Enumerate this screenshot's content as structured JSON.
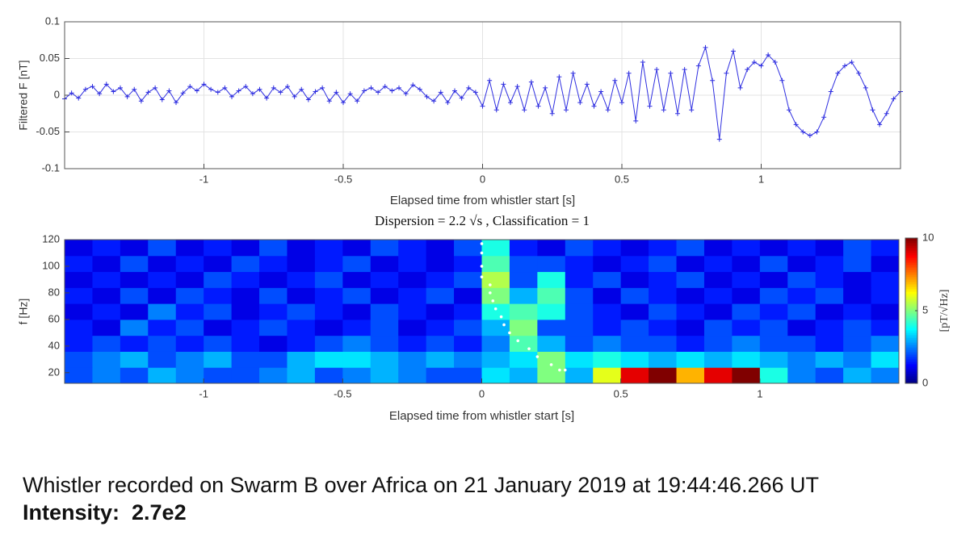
{
  "chart_data": [
    {
      "type": "line",
      "xlabel": "Elapsed time from whistler start  [s]",
      "ylabel": "Filtered F [nT]",
      "xlim": [
        -1.5,
        1.5
      ],
      "ylim": [
        -0.1,
        0.1
      ],
      "xticks": [
        -1,
        -0.5,
        0,
        0.5,
        1
      ],
      "yticks": [
        -0.1,
        -0.05,
        0,
        0.05,
        0.1
      ],
      "grid": true,
      "x": [
        -1.5,
        -1.475,
        -1.45,
        -1.425,
        -1.4,
        -1.375,
        -1.35,
        -1.325,
        -1.3,
        -1.275,
        -1.25,
        -1.225,
        -1.2,
        -1.175,
        -1.15,
        -1.125,
        -1.1,
        -1.075,
        -1.05,
        -1.025,
        -1,
        -0.975,
        -0.95,
        -0.925,
        -0.9,
        -0.875,
        -0.85,
        -0.825,
        -0.8,
        -0.775,
        -0.75,
        -0.725,
        -0.7,
        -0.675,
        -0.65,
        -0.625,
        -0.6,
        -0.575,
        -0.55,
        -0.525,
        -0.5,
        -0.475,
        -0.45,
        -0.425,
        -0.4,
        -0.375,
        -0.35,
        -0.325,
        -0.3,
        -0.275,
        -0.25,
        -0.225,
        -0.2,
        -0.175,
        -0.15,
        -0.125,
        -0.1,
        -0.075,
        -0.05,
        -0.025,
        0,
        0.025,
        0.05,
        0.075,
        0.1,
        0.125,
        0.15,
        0.175,
        0.2,
        0.225,
        0.25,
        0.275,
        0.3,
        0.325,
        0.35,
        0.375,
        0.4,
        0.425,
        0.45,
        0.475,
        0.5,
        0.525,
        0.55,
        0.575,
        0.6,
        0.625,
        0.65,
        0.675,
        0.7,
        0.725,
        0.75,
        0.775,
        0.8,
        0.825,
        0.85,
        0.875,
        0.9,
        0.925,
        0.95,
        0.975,
        1,
        1.025,
        1.05,
        1.075,
        1.1,
        1.125,
        1.15,
        1.175,
        1.2,
        1.225,
        1.25,
        1.275,
        1.3,
        1.325,
        1.35,
        1.375,
        1.4,
        1.425,
        1.45,
        1.475,
        1.5
      ],
      "series": [
        {
          "color": "#2e2ee0",
          "values": [
            -0.005,
            0.003,
            -0.004,
            0.008,
            0.012,
            0.002,
            0.015,
            0.005,
            0.01,
            -0.002,
            0.008,
            -0.008,
            0.004,
            0.01,
            -0.006,
            0.006,
            -0.01,
            0.003,
            0.012,
            0.006,
            0.015,
            0.008,
            0.004,
            0.01,
            -0.002,
            0.006,
            0.012,
            0.002,
            0.008,
            -0.004,
            0.01,
            0.004,
            0.012,
            -0.002,
            0.008,
            -0.006,
            0.005,
            0.01,
            -0.008,
            0.004,
            -0.01,
            0.002,
            -0.008,
            0.006,
            0.01,
            0.004,
            0.012,
            0.006,
            0.01,
            0.002,
            0.014,
            0.008,
            -0.002,
            -0.008,
            0.004,
            -0.01,
            0.006,
            -0.004,
            0.01,
            0.004,
            -0.015,
            0.02,
            -0.02,
            0.015,
            -0.01,
            0.012,
            -0.02,
            0.018,
            -0.015,
            0.01,
            -0.025,
            0.025,
            -0.02,
            0.03,
            -0.01,
            0.015,
            -0.015,
            0.005,
            -0.02,
            0.02,
            -0.01,
            0.03,
            -0.035,
            0.045,
            -0.015,
            0.035,
            -0.02,
            0.03,
            -0.025,
            0.035,
            -0.02,
            0.04,
            0.065,
            0.02,
            -0.06,
            0.03,
            0.06,
            0.01,
            0.035,
            0.045,
            0.04,
            0.055,
            0.045,
            0.02,
            -0.02,
            -0.04,
            -0.05,
            -0.055,
            -0.05,
            -0.03,
            0.005,
            0.03,
            0.04,
            0.045,
            0.03,
            0.01,
            -0.02,
            -0.04,
            -0.025,
            -0.005,
            0.005
          ]
        }
      ]
    },
    {
      "type": "heatmap",
      "title": "Dispersion = 2.2 √s , Classification = 1",
      "xlabel": "Elapsed time from whistler start [s]",
      "ylabel": "f [Hz]",
      "xlim": [
        -1.5,
        1.5
      ],
      "ylim": [
        12,
        120
      ],
      "xticks": [
        -1,
        -0.5,
        0,
        0.5,
        1
      ],
      "yticks": [
        20,
        40,
        60,
        80,
        100,
        120
      ],
      "xbins": [
        -1.5,
        -1.4,
        -1.3,
        -1.2,
        -1.1,
        -1,
        -0.9,
        -0.8,
        -0.7,
        -0.6,
        -0.5,
        -0.4,
        -0.3,
        -0.2,
        -0.1,
        0,
        0.1,
        0.2,
        0.3,
        0.4,
        0.5,
        0.6,
        0.7,
        0.8,
        0.9,
        1,
        1.1,
        1.2,
        1.3,
        1.4,
        1.5
      ],
      "ybins": [
        12,
        24,
        36,
        48,
        60,
        72,
        84,
        96,
        108,
        120
      ],
      "clim": [
        0,
        10
      ],
      "cticks": [
        0,
        5,
        10
      ],
      "clabel": "[pT/√Hz]",
      "colormap": "jet",
      "values": [
        [
          2,
          2.5,
          2,
          3,
          2.5,
          2,
          2,
          2.5,
          3,
          2,
          2.5,
          3,
          2.5,
          2,
          2,
          3.5,
          3,
          5,
          3,
          6,
          9,
          10,
          7,
          9,
          10,
          4,
          2.5,
          2,
          3,
          2.5
        ],
        [
          2,
          2.5,
          3,
          2,
          2.5,
          3,
          2,
          2,
          3,
          3.5,
          3.5,
          3,
          2.5,
          3,
          2.5,
          3,
          3.5,
          5,
          3.5,
          4,
          3.5,
          3,
          3.5,
          3,
          3.5,
          3,
          2.5,
          3,
          2.5,
          3.5
        ],
        [
          1.5,
          2,
          1.5,
          2,
          1.5,
          2,
          1.5,
          1,
          1.5,
          2,
          2.5,
          2,
          1.5,
          2,
          1.5,
          2.5,
          4.5,
          3,
          2,
          2.5,
          2,
          2,
          1.5,
          2,
          2.5,
          2,
          2,
          1.5,
          2,
          2.5
        ],
        [
          1.5,
          1,
          2.5,
          1.5,
          2,
          1,
          1.5,
          2,
          1.5,
          1,
          1.5,
          2,
          1,
          1.5,
          2,
          3,
          5,
          2,
          2,
          1.5,
          2,
          1.5,
          1,
          2,
          1.5,
          2,
          1,
          1.5,
          2,
          1.5
        ],
        [
          1,
          1.5,
          1,
          2.5,
          1.5,
          2,
          1,
          1.5,
          2,
          1.5,
          1,
          2,
          1.5,
          1,
          1.5,
          4,
          4.5,
          4,
          2,
          1.5,
          1,
          2,
          1.5,
          1,
          2,
          1.5,
          2,
          1,
          1.5,
          1
        ],
        [
          1.5,
          1,
          2,
          1,
          2,
          1.5,
          1,
          2,
          1,
          1.5,
          2,
          1,
          1.5,
          2,
          1,
          5,
          3,
          4.5,
          2,
          1,
          2,
          1.5,
          1,
          1.5,
          1,
          2,
          1.5,
          2,
          1,
          1.5
        ],
        [
          1,
          1.5,
          1,
          1.5,
          1,
          2,
          1.5,
          1,
          1.5,
          2,
          1,
          1.5,
          1,
          1.5,
          2,
          5.5,
          2,
          4,
          1.5,
          2,
          1,
          1.5,
          2,
          1,
          1.5,
          1,
          2,
          1.5,
          1,
          1.5
        ],
        [
          1.5,
          1,
          2,
          1,
          1.5,
          1,
          2,
          1.5,
          1,
          1.5,
          2,
          1,
          1.5,
          1,
          1.5,
          4.5,
          2,
          2,
          1.5,
          1,
          1.5,
          2,
          1,
          1.5,
          1,
          2,
          1,
          1.5,
          2,
          1
        ],
        [
          1,
          1.5,
          1,
          2,
          1,
          1.5,
          1,
          2,
          1,
          1.5,
          1,
          2,
          1.5,
          1,
          2,
          4,
          1.5,
          1,
          2,
          1.5,
          1,
          1.5,
          2,
          1,
          1.5,
          1,
          1.5,
          1,
          2,
          1.5
        ]
      ],
      "trace_color": "#ffffff",
      "trace_x": [
        0,
        0,
        0,
        0,
        0.03,
        0.03,
        0.04,
        0.05,
        0.07,
        0.08,
        0.1,
        0.13,
        0.17,
        0.2,
        0.25,
        0.28,
        0.3
      ],
      "trace_y": [
        117,
        110,
        100,
        92,
        86,
        80,
        74,
        68,
        62,
        56,
        50,
        44,
        38,
        32,
        26,
        22,
        22
      ]
    }
  ],
  "caption": {
    "line1": "Whistler recorded on Swarm B over Africa on 21 January 2019 at 19:44:46.266 UT",
    "line2": "Intensity:  2.7e2"
  }
}
